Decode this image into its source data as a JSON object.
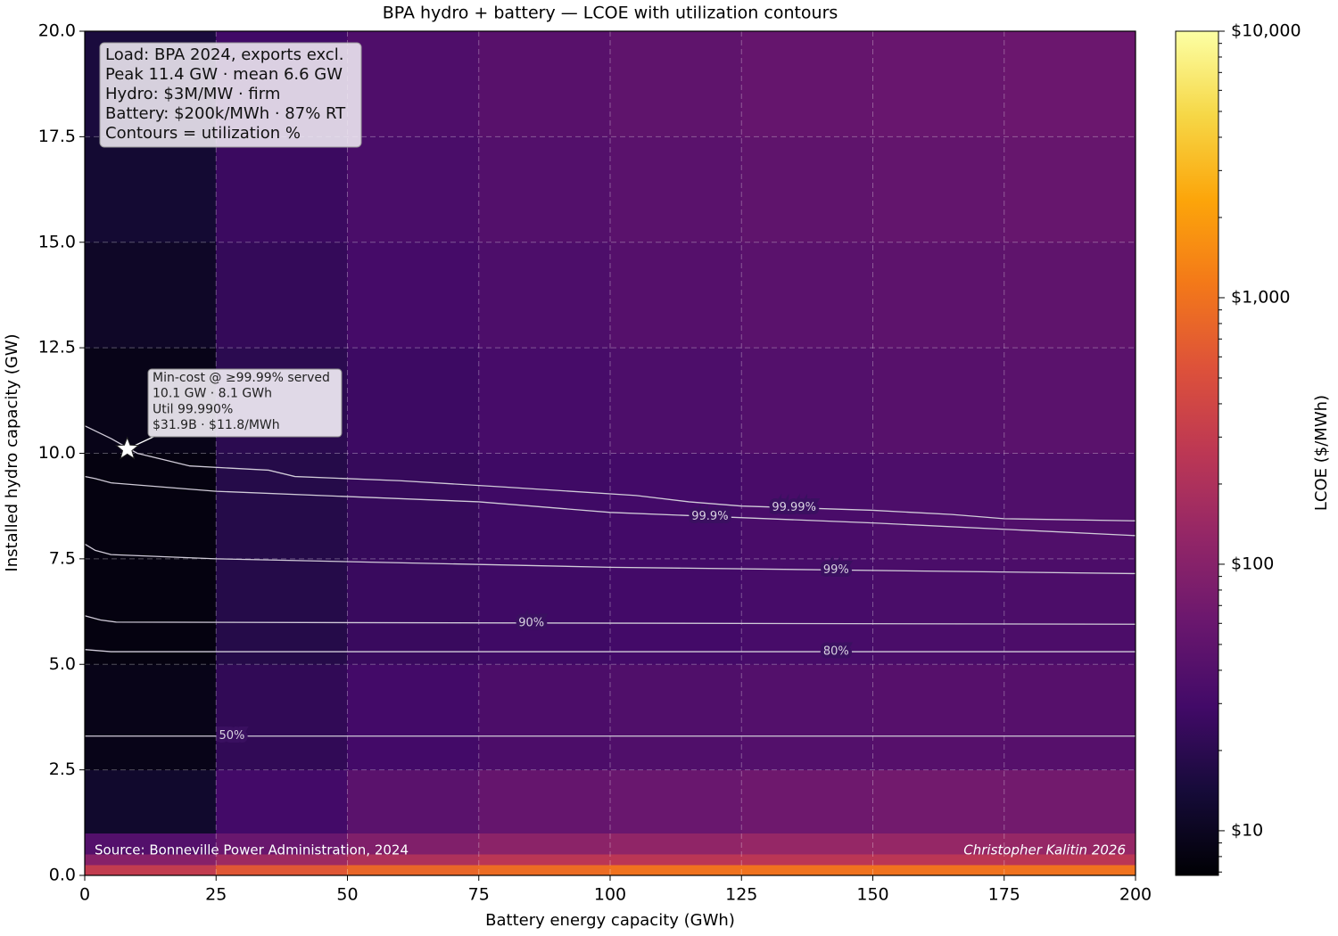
{
  "chart_data": {
    "type": "heatmap",
    "title": "BPA hydro + battery — LCOE with utilization contours",
    "x_label": "Battery energy capacity (GWh)",
    "y_label": "Installed hydro capacity (GW)",
    "colorbar_label": "LCOE ($/MWh)",
    "colormap": "inferno",
    "log_color": true,
    "grid": true,
    "xlim": [
      0,
      200
    ],
    "ylim": [
      0,
      20
    ],
    "xticks": [
      0,
      25,
      50,
      75,
      100,
      125,
      150,
      175,
      200
    ],
    "yticks": [
      {
        "value": 0,
        "label": "0.0"
      },
      2.5,
      {
        "value": 5,
        "label": "5.0"
      },
      7.5,
      {
        "value": 10,
        "label": "10.0"
      },
      12.5,
      {
        "value": 15,
        "label": "15.0"
      },
      17.5,
      {
        "value": 20,
        "label": "20.0"
      }
    ],
    "clim": [
      6.8,
      10000
    ],
    "cticks": [
      {
        "value": 10,
        "label": "$10"
      },
      {
        "value": 100,
        "label": "$100"
      },
      {
        "value": 1000,
        "label": "$1,000"
      },
      {
        "value": 10000,
        "label": "$10,000"
      }
    ],
    "x_edges": [
      0,
      25,
      50,
      75,
      100,
      125,
      150,
      175,
      200
    ],
    "y_edges": [
      0,
      0.25,
      0.5,
      1,
      2.5,
      5,
      7.5,
      10,
      12.5,
      15,
      17.5,
      20
    ],
    "z": [
      [
        300,
        600,
        800,
        900,
        1000,
        1000,
        1000,
        1000
      ],
      [
        100,
        150,
        200,
        250,
        250,
        250,
        250,
        250
      ],
      [
        40,
        60,
        90,
        110,
        120,
        130,
        130,
        130
      ],
      [
        12,
        30,
        45,
        55,
        60,
        65,
        70,
        70
      ],
      [
        9,
        22,
        30,
        35,
        38,
        40,
        42,
        42
      ],
      [
        8,
        18,
        25,
        28,
        30,
        32,
        34,
        35
      ],
      [
        8,
        18,
        24,
        28,
        30,
        33,
        36,
        38
      ],
      [
        9,
        20,
        27,
        32,
        36,
        40,
        43,
        45
      ],
      [
        11,
        23,
        31,
        36,
        41,
        45,
        48,
        50
      ],
      [
        13,
        26,
        34,
        40,
        45,
        50,
        53,
        56
      ],
      [
        15,
        29,
        37,
        44,
        50,
        55,
        58,
        62
      ]
    ],
    "contours": [
      {
        "name": "50%",
        "x": [
          0,
          200
        ],
        "values": [
          3.3,
          3.3
        ]
      },
      {
        "name": "80%",
        "x": [
          0,
          5,
          200
        ],
        "values": [
          5.35,
          5.3,
          5.3
        ]
      },
      {
        "name": "90%",
        "x": [
          0,
          3,
          6,
          200
        ],
        "values": [
          6.15,
          6.05,
          6.0,
          5.95
        ]
      },
      {
        "name": "99%",
        "x": [
          0,
          2,
          5,
          25,
          100,
          200
        ],
        "values": [
          7.85,
          7.7,
          7.6,
          7.5,
          7.3,
          7.15
        ]
      },
      {
        "name": "99.9%",
        "x": [
          0,
          2,
          5,
          25,
          75,
          100,
          150,
          200
        ],
        "values": [
          9.45,
          9.4,
          9.3,
          9.1,
          8.85,
          8.6,
          8.35,
          8.05
        ]
      },
      {
        "name": "99.99%",
        "x": [
          0,
          5,
          10,
          20,
          35,
          40,
          60,
          80,
          105,
          115,
          125,
          150,
          165,
          175,
          200
        ],
        "values": [
          10.65,
          10.35,
          10.0,
          9.7,
          9.6,
          9.45,
          9.35,
          9.2,
          9.0,
          8.85,
          8.75,
          8.65,
          8.55,
          8.45,
          8.4
        ]
      }
    ],
    "marker": {
      "x": 8.1,
      "y": 10.1,
      "lines": [
        "Min-cost @ ≥99.99% served",
        "10.1 GW · 8.1 GWh",
        "Util 99.990%",
        "$31.9B · $11.8/MWh"
      ]
    },
    "info_box": [
      "Load: BPA 2024, exports excl.",
      "Peak 11.4 GW · mean 6.6 GW",
      "Hydro: $3M/MW · firm",
      "Battery: $200k/MWh · 87% RT",
      "Contours = utilization %"
    ],
    "source": "Source: Bonneville Power Administration, 2024",
    "credit": "Christopher Kalitin 2026"
  }
}
